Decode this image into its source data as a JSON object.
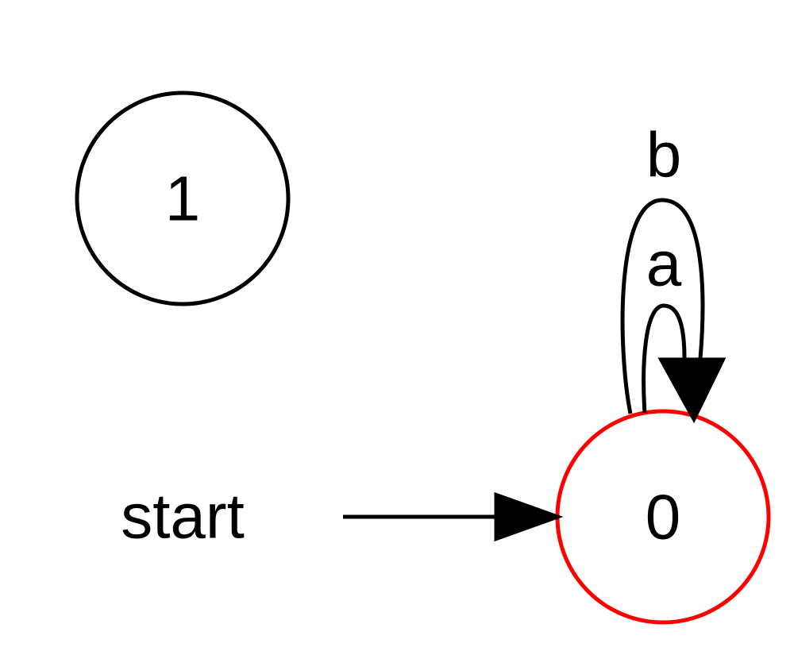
{
  "diagram": {
    "type": "finite-state-automaton",
    "start_label": "start",
    "states": [
      {
        "id": "1",
        "label": "1",
        "is_start": false,
        "color": "#000000"
      },
      {
        "id": "0",
        "label": "0",
        "is_start": true,
        "color": "#ff0000"
      }
    ],
    "transitions": [
      {
        "from": "0",
        "to": "0",
        "label": "a"
      },
      {
        "from": "0",
        "to": "0",
        "label": "b"
      }
    ],
    "colors": {
      "default_stroke": "#000000",
      "start_state_stroke": "#ff0000",
      "background": "#ffffff"
    }
  }
}
